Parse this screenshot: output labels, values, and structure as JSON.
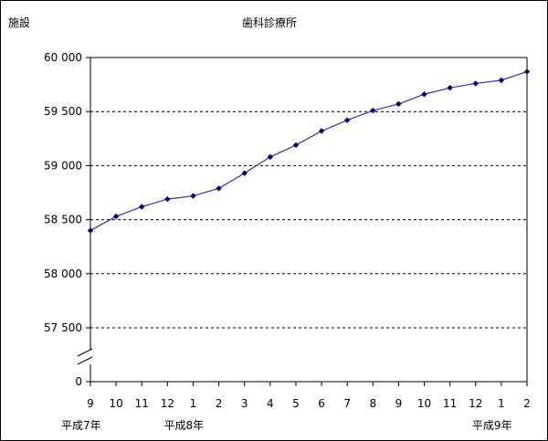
{
  "chart_data": {
    "type": "line",
    "title": "歯科診療所",
    "ylabel": "施設",
    "xlabel": "",
    "colors": {
      "line": "#3333aa",
      "marker": "#000080",
      "grid": "#000000"
    },
    "y_axis": {
      "ticks": [
        57500,
        58000,
        58500,
        59000,
        59500,
        60000
      ],
      "tick_labels": [
        "57 500",
        "58 000",
        "58 500",
        "59 000",
        "59 500",
        "60 000"
      ],
      "zero_label": "0",
      "range": [
        57500,
        60000
      ],
      "axis_break": true,
      "gridlines": "dashed"
    },
    "x": [
      "9",
      "10",
      "11",
      "12",
      "1",
      "2",
      "3",
      "4",
      "5",
      "6",
      "7",
      "8",
      "9",
      "10",
      "11",
      "12",
      "1",
      "2"
    ],
    "year_labels": [
      {
        "index": 0,
        "text": "平成7年"
      },
      {
        "index": 4,
        "text": "平成8年"
      },
      {
        "index": 16,
        "text": "平成9年"
      }
    ],
    "series": [
      {
        "values": [
          58400,
          58530,
          58620,
          58690,
          58720,
          58790,
          58930,
          59080,
          59190,
          59320,
          59420,
          59510,
          59570,
          59660,
          59720,
          59760,
          59790,
          59870
        ]
      }
    ],
    "legend": "none"
  }
}
